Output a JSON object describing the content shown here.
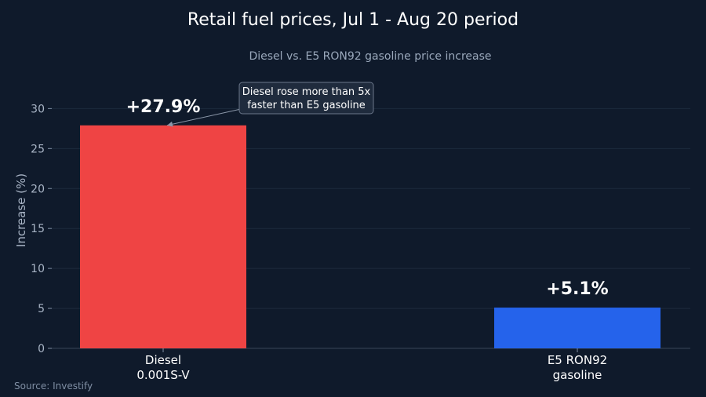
{
  "chart_data": {
    "type": "bar",
    "title": "Retail fuel prices, Jul 1 - Aug 20 period",
    "subtitle": "Diesel vs. E5 RON92 gasoline price increase",
    "ylabel": "Increase (%)",
    "ylim": [
      0,
      32
    ],
    "yticks": [
      0,
      5,
      10,
      15,
      20,
      25,
      30
    ],
    "grid": true,
    "categories": [
      {
        "line1": "Diesel",
        "line2": "0.001S-V"
      },
      {
        "line1": "E5 RON92",
        "line2": "gasoline"
      }
    ],
    "values": [
      27.9,
      5.1
    ],
    "data_labels": [
      "+27.9%",
      "+5.1%"
    ],
    "colors": [
      "#ef4444",
      "#2563eb"
    ],
    "annotation": {
      "line1": "Diesel rose more than 5x",
      "line2": "faster than E5 gasoline",
      "target_category": 0
    },
    "source": "Source: Investify"
  }
}
